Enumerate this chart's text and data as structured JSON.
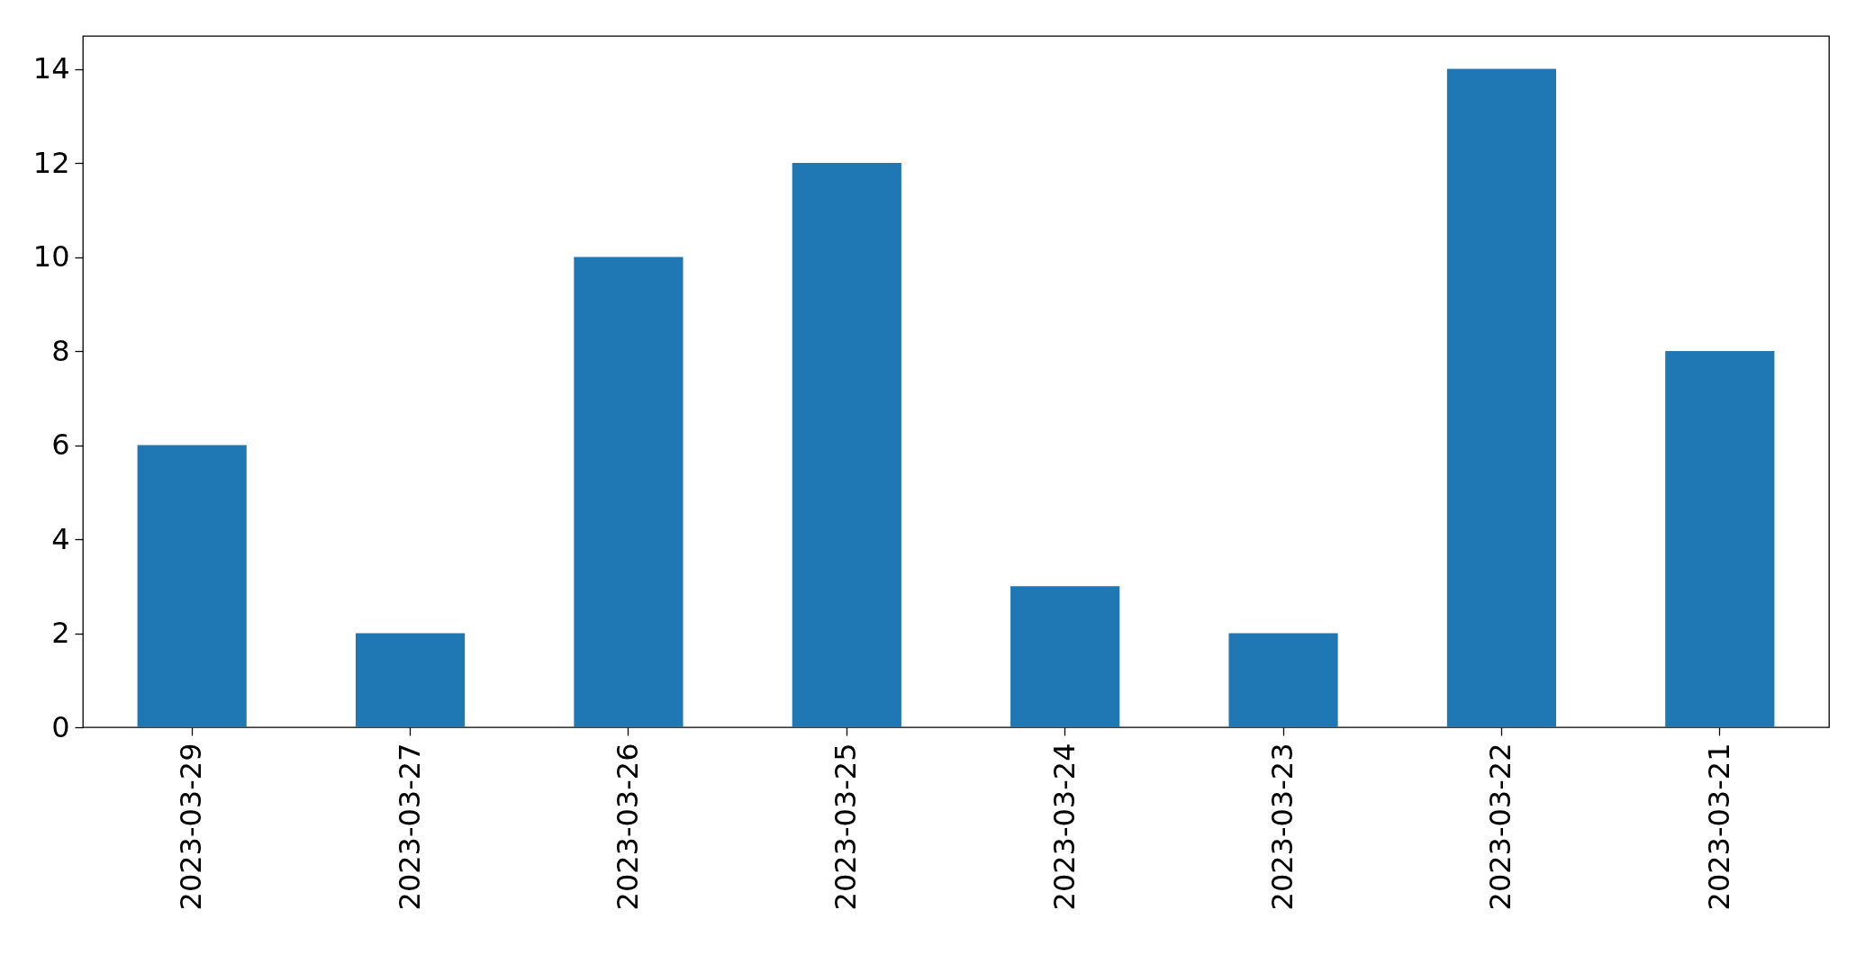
{
  "chart_data": {
    "type": "bar",
    "categories": [
      "2023-03-29",
      "2023-03-27",
      "2023-03-26",
      "2023-03-25",
      "2023-03-24",
      "2023-03-23",
      "2023-03-22",
      "2023-03-21"
    ],
    "values": [
      6,
      2,
      10,
      12,
      3,
      2,
      14,
      8
    ],
    "color": "#1f77b4",
    "ylim": [
      0,
      14.7
    ],
    "yticks": [
      0,
      2,
      4,
      6,
      8,
      10,
      12,
      14
    ],
    "grid": false
  }
}
